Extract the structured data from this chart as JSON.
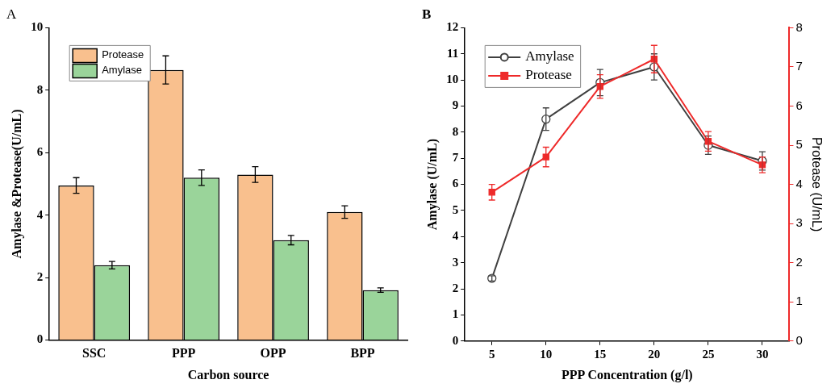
{
  "chart_data": [
    {
      "type": "bar",
      "title": "A",
      "xlabel": "Carbon source",
      "ylabel": "Amylase &Protease(U/mL)",
      "categories": [
        "SSC",
        "PPP",
        "OPP",
        "BPP"
      ],
      "series": [
        {
          "name": "Protease",
          "color": "#f9c08e",
          "values": [
            4.95,
            8.65,
            5.3,
            4.1
          ],
          "errors": [
            0.25,
            0.45,
            0.25,
            0.2
          ]
        },
        {
          "name": "Amylase",
          "color": "#9ad49a",
          "values": [
            2.4,
            5.2,
            3.2,
            1.6
          ],
          "errors": [
            0.12,
            0.25,
            0.15,
            0.07
          ]
        }
      ],
      "ylim": [
        0,
        10
      ],
      "yticks": [
        0,
        2,
        4,
        6,
        8,
        10
      ],
      "legend": "top left"
    },
    {
      "type": "line",
      "title": "B",
      "xlabel": "PPP Concentration (g/l)",
      "ylabel": "Amylase (U/mL)",
      "y2label": "Protease (U/mL)",
      "x": [
        5,
        10,
        15,
        20,
        25,
        30
      ],
      "series": [
        {
          "name": "Amylase",
          "color": "#404040",
          "marker": "circle",
          "values": [
            2.4,
            8.5,
            9.9,
            10.5,
            7.5,
            6.9
          ],
          "errors": [
            0.1,
            0.43,
            0.5,
            0.5,
            0.35,
            0.35
          ]
        },
        {
          "name": "Protease",
          "color": "#ee2a2a",
          "marker": "square",
          "axis": "y2",
          "values": [
            3.8,
            4.7,
            6.5,
            7.2,
            5.1,
            4.5
          ],
          "errors": [
            0.2,
            0.25,
            0.3,
            0.35,
            0.25,
            0.2
          ]
        }
      ],
      "xlim": [
        2.5,
        32.5
      ],
      "xticks": [
        5,
        10,
        15,
        20,
        25,
        30
      ],
      "ylim": [
        0,
        12
      ],
      "yticks": [
        0,
        1,
        2,
        3,
        4,
        5,
        6,
        7,
        8,
        9,
        10,
        11,
        12
      ],
      "y2lim": [
        0,
        8
      ],
      "y2ticks": [
        0,
        1,
        2,
        3,
        4,
        5,
        6,
        7,
        8
      ],
      "legend": "top left"
    }
  ]
}
